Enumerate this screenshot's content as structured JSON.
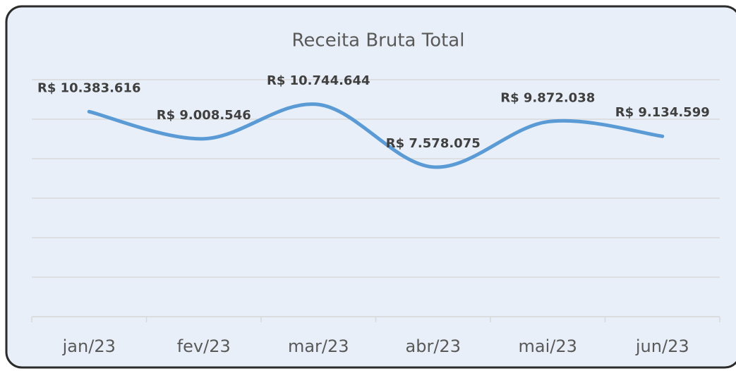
{
  "chart_data": {
    "type": "line",
    "title": "Receita Bruta Total",
    "categories": [
      "jan/23",
      "fev/23",
      "mar/23",
      "abr/23",
      "mai/23",
      "jun/23"
    ],
    "series": [
      {
        "color": "#5b9bd5",
        "values": [
          10383616,
          9008546,
          10744644,
          7578075,
          9872038,
          9134599
        ],
        "value_labels": [
          "R$ 10.383.616",
          "R$ 9.008.546",
          "R$ 10.744.644",
          "R$ 7.578.075",
          "R$ 9.872.038",
          "R$ 9.134.599"
        ]
      }
    ],
    "ylim": [
      0,
      12000000
    ],
    "yticks": [
      0,
      2000000,
      4000000,
      6000000,
      8000000,
      10000000,
      12000000
    ],
    "grid": true,
    "smooth": true
  }
}
